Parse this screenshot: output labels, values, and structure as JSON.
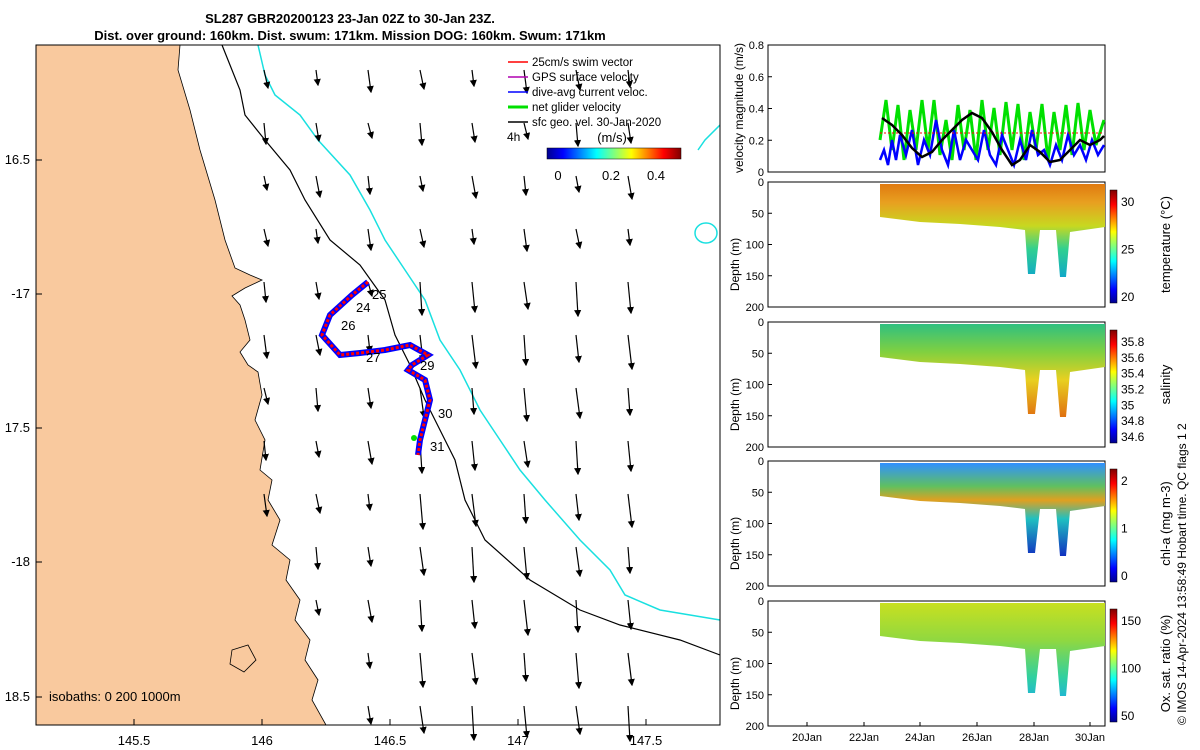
{
  "title": {
    "line1": "SL287 GBR20200123 23-Jan 02Z to 30-Jan 23Z.",
    "line2": "Dist. over ground: 160km. Dist. swum: 171km. Mission DOG: 160km. Swum: 171km"
  },
  "map": {
    "lon_ticks": [
      "145.5",
      "146",
      "146.5",
      "147",
      "147.5"
    ],
    "lat_ticks": [
      "16.5",
      "-17",
      "17.5",
      "-18",
      "18.5"
    ],
    "isobaths_label": "isobaths: 0   200  1000m",
    "legend": [
      {
        "label": "25cm/s swim vector",
        "color": "#ff0000"
      },
      {
        "label": "GPS surface velocity",
        "color": "#b000b0"
      },
      {
        "label": "dive-avg current veloc.",
        "color": "#0000ff"
      },
      {
        "label": "net glider velocity",
        "color": "#00e000"
      },
      {
        "label": "sfc geo. vel. 30-Jan-2020",
        "color": "#000000"
      }
    ],
    "colorbar_label": "(m/s)",
    "colorbar_ticks": [
      "0",
      "0.2",
      "0.4"
    ],
    "colorbar_extra": "4h",
    "track_day_labels": [
      "25",
      "24",
      "26",
      "27",
      "29",
      "30",
      "31"
    ],
    "colors": {
      "land": "#f9c99e",
      "isobath_200": "#000000",
      "isobath_1000": "#19e0e0"
    }
  },
  "velocity_panel": {
    "ylabel": "velocity magnitude (m/s)",
    "yticks": [
      "0",
      "0.2",
      "0.4",
      "0.6",
      "0.8"
    ]
  },
  "profile_panels": [
    {
      "name": "temperature",
      "cbar_label": "temperature (°C)",
      "cbar_ticks": [
        "30",
        "25",
        "20"
      ]
    },
    {
      "name": "salinity",
      "cbar_label": "salinity",
      "cbar_ticks": [
        "35.8",
        "35.6",
        "35.4",
        "35.2",
        "35",
        "34.8",
        "34.6"
      ]
    },
    {
      "name": "chl-a",
      "cbar_label": "chl-a (mg m-3)",
      "cbar_ticks": [
        "2",
        "1",
        "0"
      ]
    },
    {
      "name": "oxygen",
      "cbar_label": "Ox. sat. ratio (%)",
      "cbar_ticks": [
        "150",
        "100",
        "50"
      ]
    }
  ],
  "depth_label": "Depth (m)",
  "depth_ticks": [
    "0",
    "50",
    "100",
    "150",
    "200"
  ],
  "time_ticks": [
    "20Jan",
    "22Jan",
    "24Jan",
    "26Jan",
    "28Jan",
    "30Jan"
  ],
  "footer": "© IMOS 14-Apr-2024 13:58:49 Hobart time. QC flags 1  2"
}
